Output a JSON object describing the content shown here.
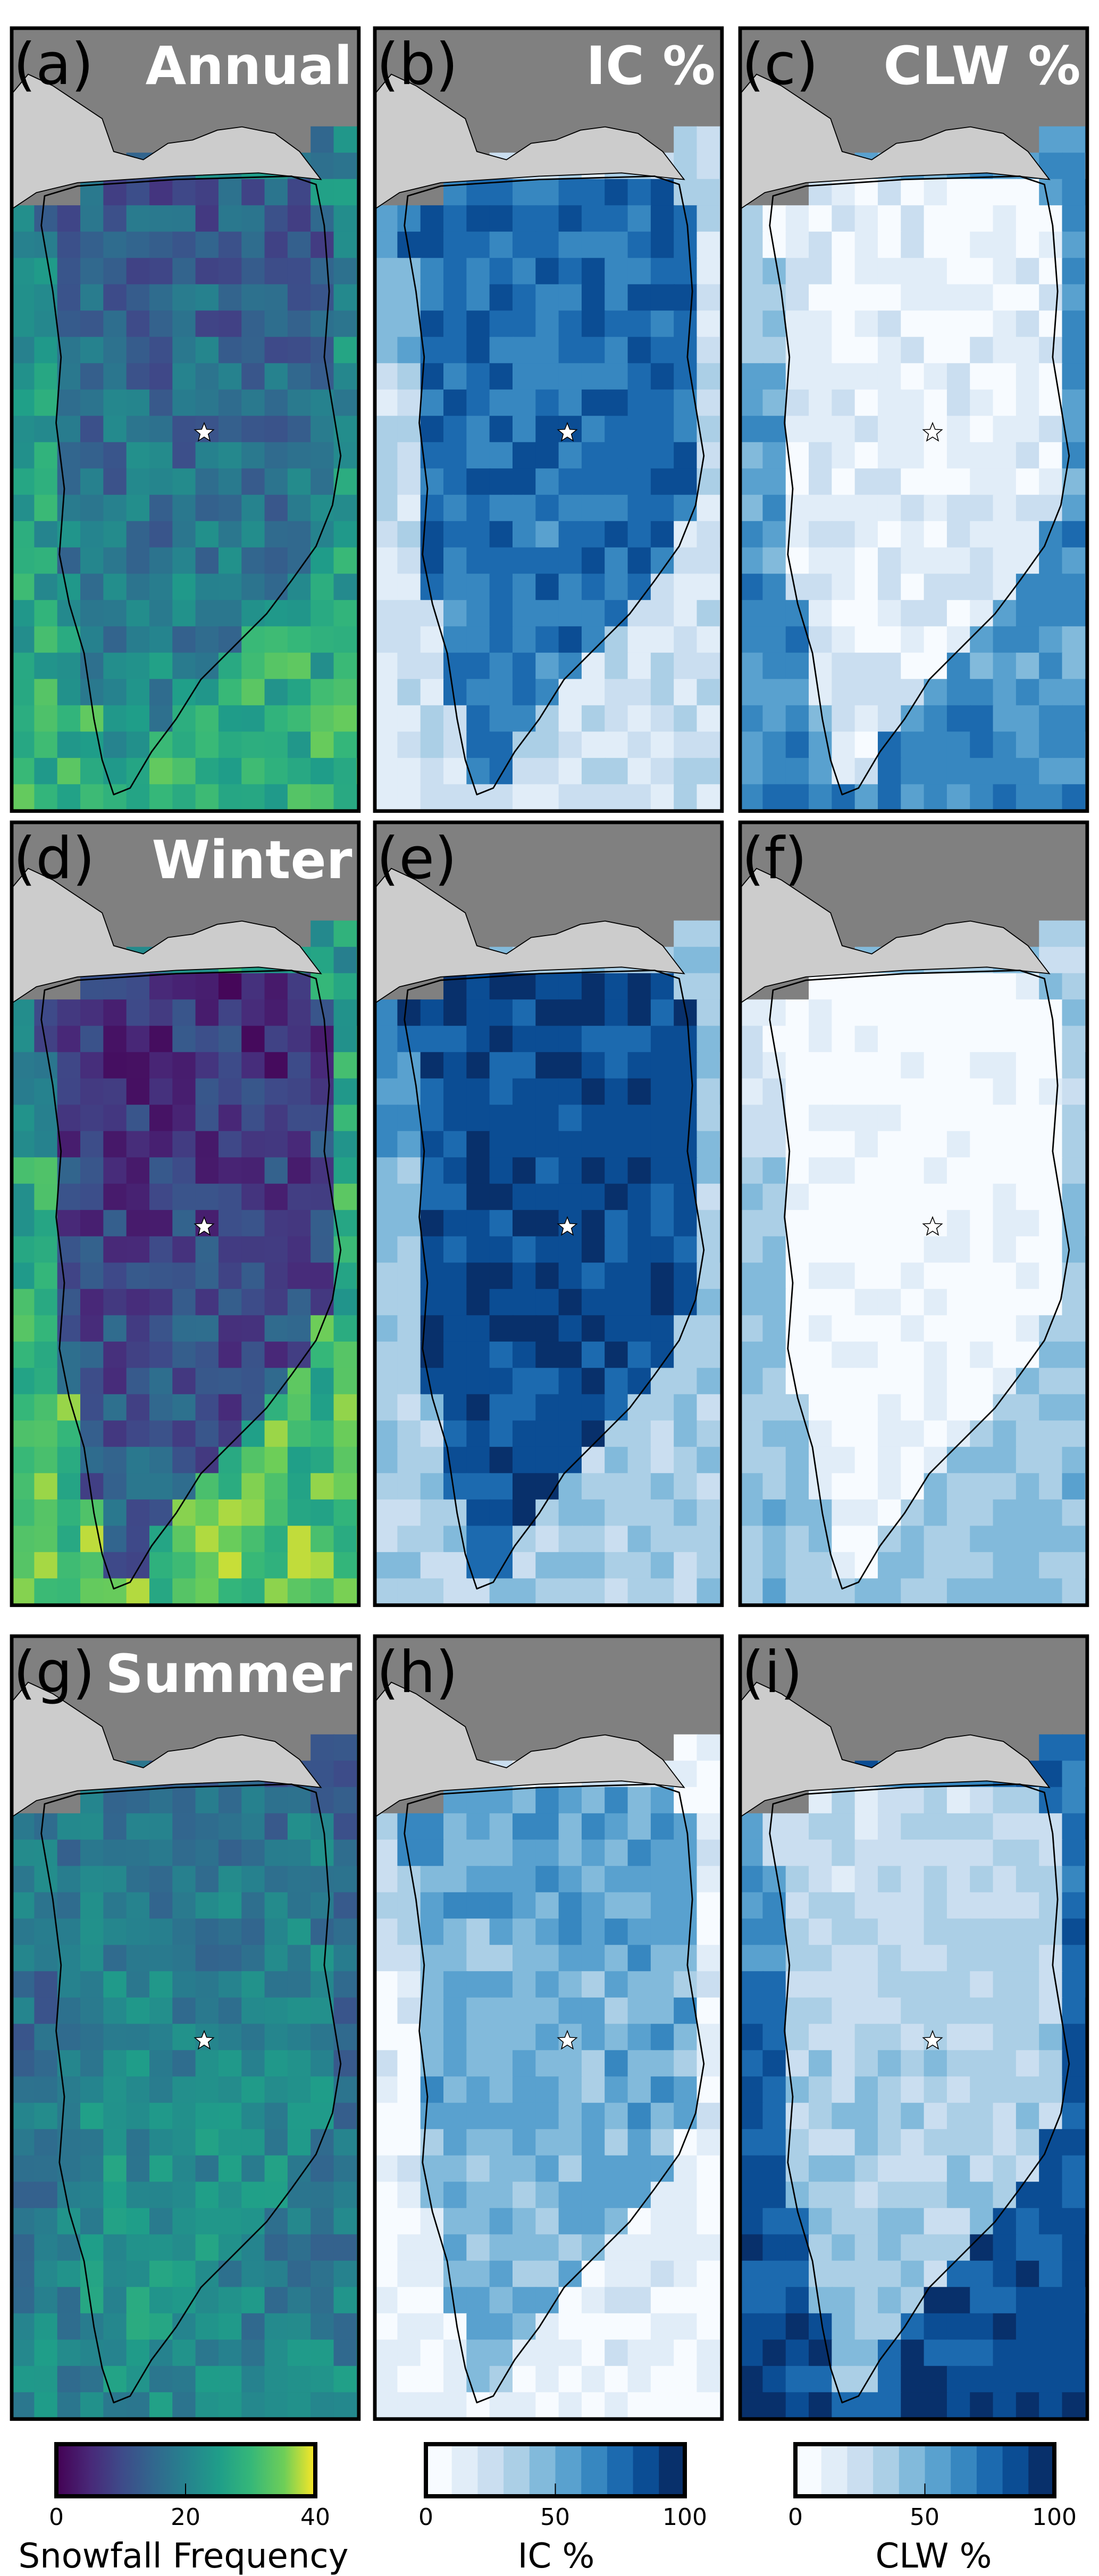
{
  "figure": {
    "panels": [
      {
        "label": "(a)",
        "title": "Annual",
        "variable": "snowfall"
      },
      {
        "label": "(b)",
        "title": "IC %",
        "variable": "ic"
      },
      {
        "label": "(c)",
        "title": "CLW %",
        "variable": "clw"
      },
      {
        "label": "(d)",
        "title": "Winter",
        "variable": "snowfall"
      },
      {
        "label": "(e)",
        "title": "",
        "variable": "ic"
      },
      {
        "label": "(f)",
        "title": "",
        "variable": "clw"
      },
      {
        "label": "(g)",
        "title": "Summer",
        "variable": "snowfall"
      },
      {
        "label": "(h)",
        "title": "",
        "variable": "ic"
      },
      {
        "label": "(i)",
        "title": "",
        "variable": "clw"
      }
    ],
    "colorbars": [
      {
        "label": "Snowfall Frequency",
        "colormap": "viridis",
        "range": [
          0,
          40
        ],
        "ticks": [
          "0",
          "20",
          "40"
        ]
      },
      {
        "label": "IC %",
        "colormap": "Blues",
        "range": [
          0,
          100
        ],
        "bins": 10,
        "ticks": [
          "0",
          "50",
          "100"
        ]
      },
      {
        "label": "CLW %",
        "colormap": "Blues",
        "range": [
          0,
          100
        ],
        "bins": 10,
        "ticks": [
          "0",
          "50",
          "100"
        ]
      }
    ],
    "colors": {
      "background": "#808080",
      "land_outside": "#cccccc",
      "coastline": "#000000",
      "star": "#ffffff"
    }
  }
}
